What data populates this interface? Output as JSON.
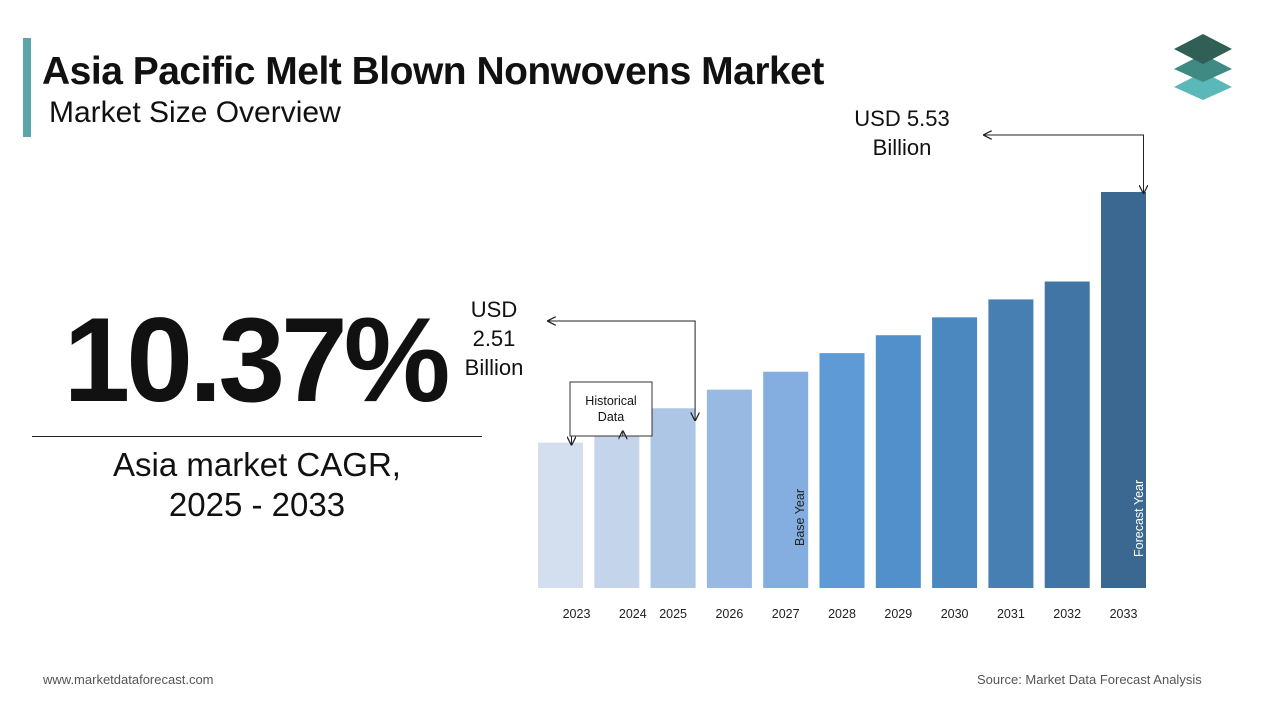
{
  "header": {
    "title": "Asia Pacific Melt Blown Nonwovens Market",
    "subtitle": "Market Size Overview"
  },
  "cagr": {
    "value": "10.37%",
    "label_line1": "Asia market CAGR,",
    "label_line2": "2025 - 2033"
  },
  "chart_data": {
    "type": "bar",
    "categories": [
      "2023",
      "2024",
      "2025",
      "2026",
      "2027",
      "2028",
      "2029",
      "2030",
      "2031",
      "2032",
      "2033"
    ],
    "values": [
      2.03,
      2.26,
      2.51,
      2.77,
      3.02,
      3.28,
      3.53,
      3.78,
      4.03,
      4.28,
      5.53
    ],
    "ylim": [
      0,
      5.53
    ],
    "colors": [
      "#d3deef",
      "#c4d4eb",
      "#aec6e6",
      "#98b9e1",
      "#84ade0",
      "#5e9ad6",
      "#5290cb",
      "#4c88c0",
      "#477fb3",
      "#4175a6",
      "#3a6891"
    ],
    "annotations": {
      "start_label_lines": [
        "USD",
        "2.51",
        "Billion"
      ],
      "end_label_lines": [
        "USD 5.53",
        "Billion"
      ],
      "historical_label_lines": [
        "Historical",
        "Data"
      ],
      "base_year_label": "Base Year",
      "forecast_year_label": "Forecast Year"
    }
  },
  "footer": {
    "website": "www.marketdataforecast.com",
    "source": "Source: Market Data Forecast Analysis"
  }
}
